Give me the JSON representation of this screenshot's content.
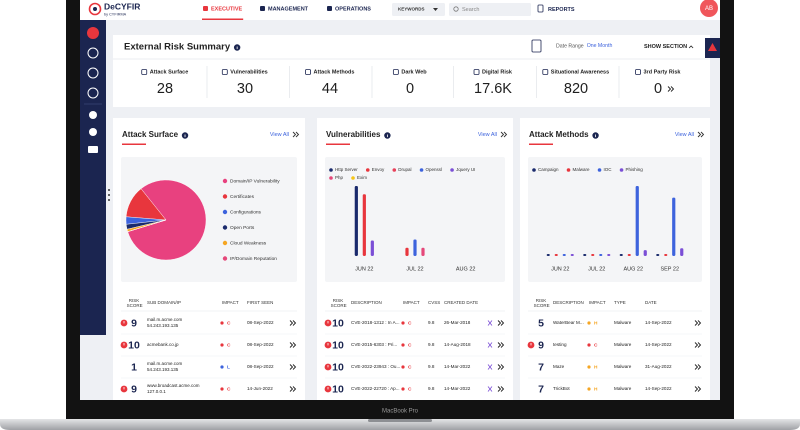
{
  "nav": {
    "brand": "DeCYFIR",
    "brand_sub": "by CYFIRMA",
    "items": [
      "EXECUTIVE",
      "MANAGEMENT",
      "OPERATIONS"
    ],
    "keywords": "KEYWORDS",
    "search": "Search",
    "reports": "REPORTS",
    "avatar": "AB"
  },
  "summary": {
    "title": "External Risk Summary",
    "date_range_label": "Date Range",
    "date_range_value": "One Month",
    "show_section": "SHOW SECTION",
    "metrics": [
      {
        "label": "Attack Surface",
        "value": 28
      },
      {
        "label": "Vulnerabilities",
        "value": 30
      },
      {
        "label": "Attack Methods",
        "value": 44
      },
      {
        "label": "Dark Web",
        "value": 0
      },
      {
        "label": "Digital Risk",
        "value": "17.6K"
      },
      {
        "label": "Situational Awareness",
        "value": 820
      },
      {
        "label": "3rd Party Risk",
        "value": 0
      }
    ]
  },
  "panels": [
    {
      "title": "Attack Surface",
      "view_all": "View All",
      "chart": {
        "type": "pie",
        "categories": [
          "Domain/IP Vulnerability",
          "Certificates",
          "Configurations",
          "Open Ports",
          "Cloud Weakness",
          "IP/Domain Reputation"
        ],
        "values": [
          81,
          13,
          3,
          2,
          1,
          0
        ],
        "colors": [
          "#e8417f",
          "#e8363d",
          "#3d63dd",
          "#1a2a6c",
          "#f5a623",
          "#e5487a"
        ]
      },
      "table": {
        "headers": [
          "RISK SCORE",
          "SUB DOMAIN/IP",
          "IMPACT",
          "FIRST SEEN"
        ],
        "rows": [
          {
            "score": 9,
            "subdomain": "mail.m.acme.com",
            "ip": "54.243.193.135",
            "impact": "C",
            "impact_color": "#e8363d",
            "first_seen": "08-Sep-2022"
          },
          {
            "score": 10,
            "subdomain": "acmebank.co.jp",
            "impact": "C",
            "impact_color": "#e8363d",
            "first_seen": "08-Sep-2022"
          },
          {
            "score": 1,
            "subdomain": "mail.m.acme.com",
            "ip": "54.243.193.135",
            "impact": "L",
            "impact_color": "#3d63dd",
            "first_seen": "08-Sep-2022"
          },
          {
            "score": 9,
            "subdomain": "www.broadcast.acme.com",
            "ip": "127.0.0.1",
            "impact": "C",
            "impact_color": "#e8363d",
            "first_seen": "14-Jun-2022"
          }
        ]
      }
    },
    {
      "title": "Vulnerabilities",
      "view_all": "View All",
      "chart": {
        "type": "bar",
        "categories": [
          "JUN 22",
          "JUL 22",
          "AUG 22"
        ],
        "series": [
          {
            "name": "Http Server",
            "color": "#1a2a6c",
            "values": [
              68,
              0,
              0
            ]
          },
          {
            "name": "Envoy",
            "color": "#e8363d",
            "values": [
              60,
              8,
              0
            ]
          },
          {
            "name": "Drupal",
            "color": "#e8415a",
            "values": [
              0,
              0,
              0
            ]
          },
          {
            "name": "Openssl",
            "color": "#3d63dd",
            "values": [
              0,
              16,
              0
            ]
          },
          {
            "name": "Jquery UI",
            "color": "#7b4fd6",
            "values": [
              15,
              0,
              0
            ]
          },
          {
            "name": "Php",
            "color": "#e5487a",
            "values": [
              0,
              8,
              0
            ]
          },
          {
            "name": "Exim",
            "color": "#f5c518",
            "values": [
              0,
              0,
              0
            ]
          }
        ]
      },
      "table": {
        "headers": [
          "RISK SCORE",
          "DESCRIPTION",
          "IMPACT",
          "CVSS",
          "CREATED DATE"
        ],
        "rows": [
          {
            "score": 10,
            "description": "CVE-2018-1312 : In A...",
            "impact": "C",
            "impact_color": "#e8363d",
            "cvss": 9.8,
            "created": "26-Mar-2018"
          },
          {
            "score": 10,
            "description": "CVE-2015-6303 : Pri...",
            "impact": "C",
            "impact_color": "#e8363d",
            "cvss": 9.8,
            "created": "14-Aug-2018"
          },
          {
            "score": 10,
            "description": "CVE-2022-23943 : Ou...",
            "impact": "C",
            "impact_color": "#e8363d",
            "cvss": 9.8,
            "created": "14-Mar-2022"
          },
          {
            "score": 10,
            "description": "CVE-2022-22720 : Ap...",
            "impact": "C",
            "impact_color": "#e8363d",
            "cvss": 9.8,
            "created": "14-Mar-2022"
          }
        ]
      }
    },
    {
      "title": "Attack Methods",
      "view_all": "View All",
      "chart": {
        "type": "bar",
        "categories": [
          "JUN 22",
          "JUL 22",
          "AUG 22",
          "SEP 22"
        ],
        "series": [
          {
            "name": "Campaign",
            "color": "#1a2a6c",
            "values": [
              2,
              2,
              2,
              2
            ]
          },
          {
            "name": "Malware",
            "color": "#e8363d",
            "values": [
              2,
              2,
              2,
              2
            ]
          },
          {
            "name": "IOC",
            "color": "#3d63dd",
            "values": [
              2,
              2,
              72,
              60
            ]
          },
          {
            "name": "Phishing",
            "color": "#7b4fd6",
            "values": [
              2,
              2,
              6,
              8
            ]
          }
        ]
      },
      "table": {
        "headers": [
          "RISK SCORE",
          "DESCRIPTION",
          "IMPACT",
          "TYPE",
          "DATE"
        ],
        "rows": [
          {
            "score": 5,
            "description": "WaterBear M...",
            "impact": "H",
            "impact_color": "#f5a623",
            "type": "Malware",
            "date": "14-Sep-2022"
          },
          {
            "score": 9,
            "description": "testing",
            "impact": "C",
            "impact_color": "#e8363d",
            "type": "Malware",
            "date": "14-Sep-2022"
          },
          {
            "score": 7,
            "description": "Maze",
            "impact": "H",
            "impact_color": "#f5a623",
            "type": "Malware",
            "date": "31-Aug-2022"
          },
          {
            "score": 7,
            "description": "TrickBot",
            "impact": "H",
            "impact_color": "#f5a623",
            "type": "Malware",
            "date": "14-Sep-2022"
          }
        ]
      }
    }
  ],
  "footer": {
    "device": "MacBook Pro"
  }
}
